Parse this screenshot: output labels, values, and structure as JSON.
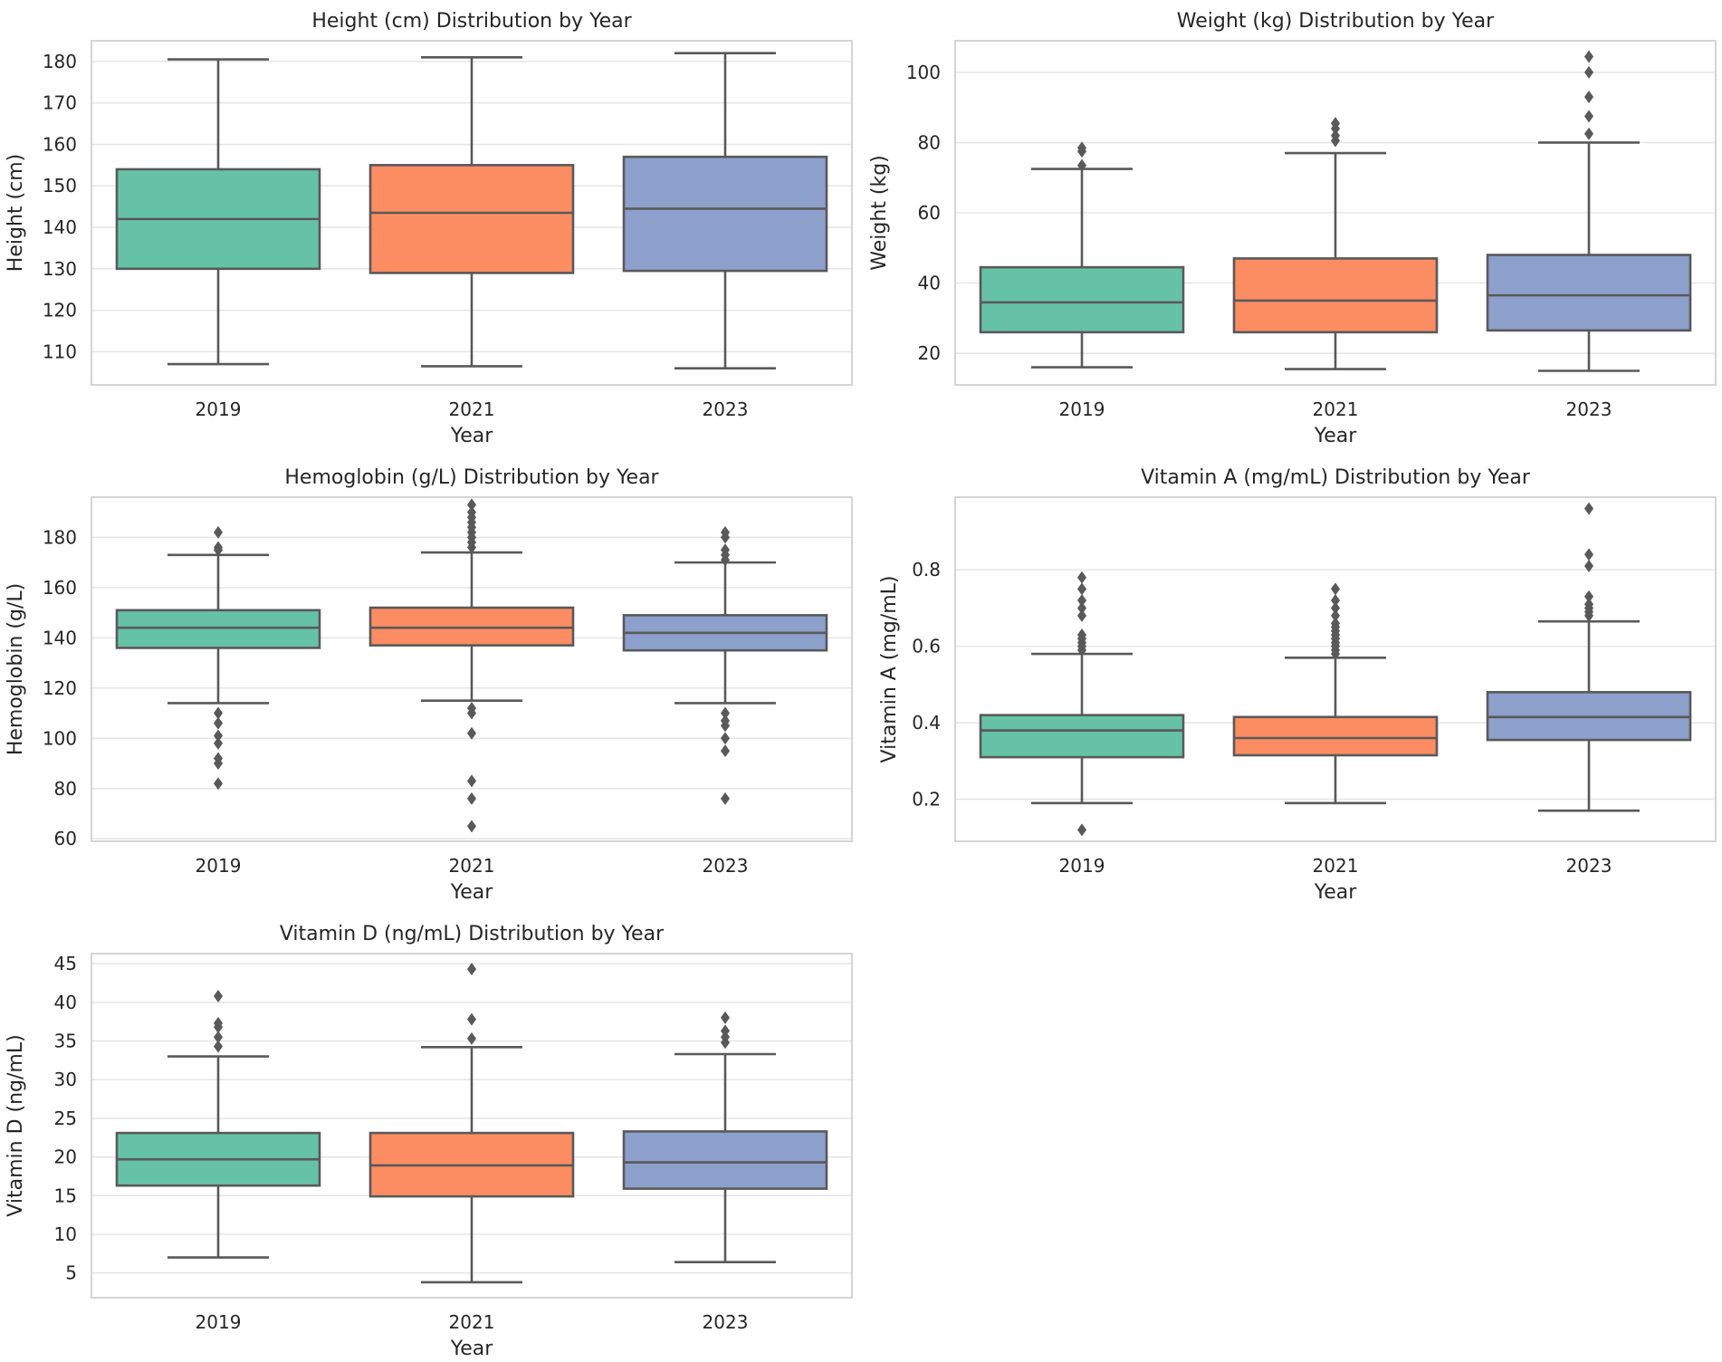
{
  "colors": {
    "background": "#ffffff",
    "grid": "#e5e5e5",
    "frame": "#d0d0d0",
    "line": "#595959",
    "text": "#262626",
    "palette": [
      "#66c2a5",
      "#fc8d62",
      "#8da0cb"
    ]
  },
  "chart_data": [
    {
      "type": "box",
      "title": "Height (cm) Distribution by Year",
      "xlabel": "Year",
      "ylabel": "Height (cm)",
      "categories": [
        "2019",
        "2021",
        "2023"
      ],
      "ylim": [
        102,
        185
      ],
      "yticks": [
        110,
        120,
        130,
        140,
        150,
        160,
        170,
        180
      ],
      "boxes": [
        {
          "whislo": 107,
          "q1": 130,
          "med": 142,
          "q3": 154,
          "whishi": 180.5,
          "fliers": []
        },
        {
          "whislo": 106.5,
          "q1": 129,
          "med": 143.5,
          "q3": 155,
          "whishi": 181,
          "fliers": []
        },
        {
          "whislo": 106,
          "q1": 129.5,
          "med": 144.5,
          "q3": 157,
          "whishi": 182,
          "fliers": []
        }
      ]
    },
    {
      "type": "box",
      "title": "Weight (kg) Distribution by Year",
      "xlabel": "Year",
      "ylabel": "Weight (kg)",
      "categories": [
        "2019",
        "2021",
        "2023"
      ],
      "ylim": [
        11,
        109
      ],
      "yticks": [
        20,
        40,
        60,
        80,
        100
      ],
      "boxes": [
        {
          "whislo": 16,
          "q1": 26,
          "med": 34.5,
          "q3": 44.5,
          "whishi": 72.5,
          "fliers": [
            73.5,
            77.5,
            78.5
          ]
        },
        {
          "whislo": 15.5,
          "q1": 26,
          "med": 35,
          "q3": 47,
          "whishi": 77,
          "fliers": [
            80.5,
            82,
            84,
            85.5
          ]
        },
        {
          "whislo": 15,
          "q1": 26.5,
          "med": 36.5,
          "q3": 48,
          "whishi": 80,
          "fliers": [
            82.5,
            87.5,
            93,
            100,
            104.5
          ]
        }
      ]
    },
    {
      "type": "box",
      "title": "Hemoglobin (g/L) Distribution by Year",
      "xlabel": "Year",
      "ylabel": "Hemoglobin (g/L)",
      "categories": [
        "2019",
        "2021",
        "2023"
      ],
      "ylim": [
        59,
        196
      ],
      "yticks": [
        60,
        80,
        100,
        120,
        140,
        160,
        180
      ],
      "boxes": [
        {
          "whislo": 114,
          "q1": 136,
          "med": 144,
          "q3": 151,
          "whishi": 173,
          "fliers": [
            82,
            90,
            92,
            98,
            101,
            106,
            110,
            175,
            176,
            182
          ]
        },
        {
          "whislo": 115,
          "q1": 137,
          "med": 144,
          "q3": 152,
          "whishi": 174,
          "fliers": [
            65,
            76,
            83,
            102,
            110,
            112,
            176,
            178,
            180,
            182,
            184,
            186,
            188,
            190,
            193
          ]
        },
        {
          "whislo": 114,
          "q1": 135,
          "med": 142,
          "q3": 149,
          "whishi": 170,
          "fliers": [
            76,
            95,
            100,
            105,
            107,
            110,
            171,
            173,
            175,
            180,
            182
          ]
        }
      ]
    },
    {
      "type": "box",
      "title": "Vitamin A (mg/mL) Distribution by Year",
      "xlabel": "Year",
      "ylabel": "Vitamin A (mg/mL)",
      "categories": [
        "2019",
        "2021",
        "2023"
      ],
      "ylim": [
        0.09,
        0.99
      ],
      "yticks": [
        0.2,
        0.4,
        0.6,
        0.8
      ],
      "ytick_labels": [
        "0.2",
        "0.4",
        "0.6",
        "0.8"
      ],
      "boxes": [
        {
          "whislo": 0.19,
          "q1": 0.31,
          "med": 0.38,
          "q3": 0.42,
          "whishi": 0.58,
          "fliers": [
            0.12,
            0.59,
            0.6,
            0.61,
            0.62,
            0.63,
            0.68,
            0.7,
            0.72,
            0.75,
            0.78
          ]
        },
        {
          "whislo": 0.19,
          "q1": 0.315,
          "med": 0.36,
          "q3": 0.415,
          "whishi": 0.57,
          "fliers": [
            0.58,
            0.59,
            0.6,
            0.61,
            0.62,
            0.63,
            0.64,
            0.65,
            0.66,
            0.68,
            0.7,
            0.72,
            0.75
          ]
        },
        {
          "whislo": 0.17,
          "q1": 0.355,
          "med": 0.415,
          "q3": 0.48,
          "whishi": 0.665,
          "fliers": [
            0.68,
            0.69,
            0.7,
            0.71,
            0.73,
            0.81,
            0.84,
            0.96
          ]
        }
      ]
    },
    {
      "type": "box",
      "title": "Vitamin D (ng/mL) Distribution by Year",
      "xlabel": "Year",
      "ylabel": "Vitamin D (ng/mL)",
      "categories": [
        "2019",
        "2021",
        "2023"
      ],
      "ylim": [
        1.8,
        46.3
      ],
      "yticks": [
        5,
        10,
        15,
        20,
        25,
        30,
        35,
        40,
        45
      ],
      "boxes": [
        {
          "whislo": 7,
          "q1": 16.3,
          "med": 19.7,
          "q3": 23.1,
          "whishi": 33,
          "fliers": [
            34.3,
            35.5,
            36.8,
            37.3,
            40.8
          ]
        },
        {
          "whislo": 3.8,
          "q1": 14.9,
          "med": 18.9,
          "q3": 23.1,
          "whishi": 34.2,
          "fliers": [
            35.3,
            37.8,
            44.3
          ]
        },
        {
          "whislo": 6.4,
          "q1": 15.9,
          "med": 19.3,
          "q3": 23.3,
          "whishi": 33.3,
          "fliers": [
            34.8,
            35.5,
            36.3,
            38
          ]
        }
      ]
    }
  ]
}
